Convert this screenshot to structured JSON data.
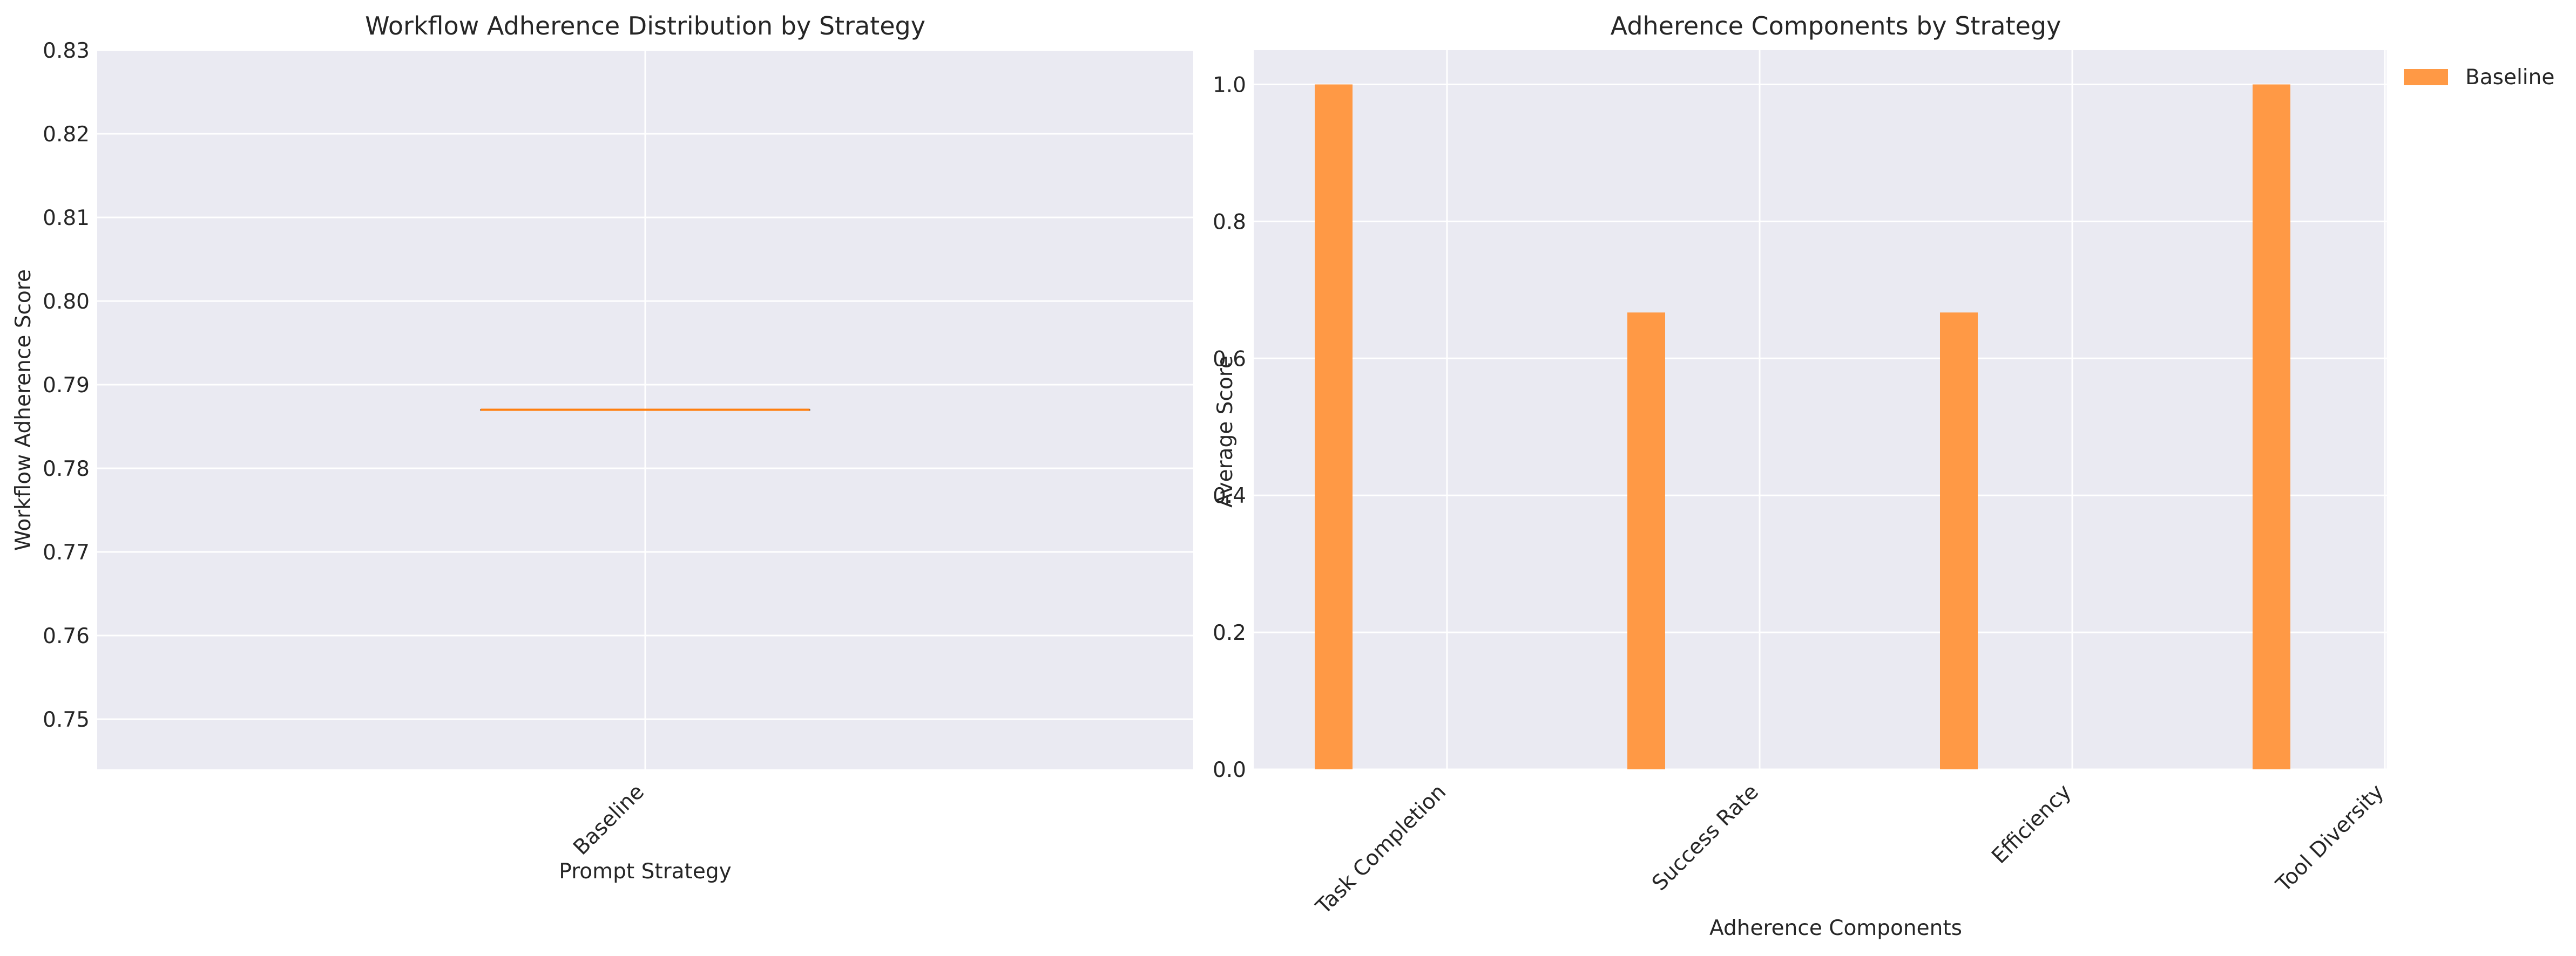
{
  "chart_data": [
    {
      "type": "box",
      "title": "Workflow Adherence Distribution by Strategy",
      "xlabel": "Prompt Strategy",
      "ylabel": "Workflow Adherence Score",
      "categories": [
        "Baseline"
      ],
      "series": [
        {
          "name": "Baseline",
          "median": 0.787,
          "q1": 0.787,
          "q3": 0.787,
          "min": 0.787,
          "max": 0.787,
          "color": "#ff7f0e"
        }
      ],
      "ylim": [
        0.744,
        0.83
      ],
      "yticks": [
        "0.75",
        "0.76",
        "0.77",
        "0.78",
        "0.79",
        "0.80",
        "0.81",
        "0.82",
        "0.83"
      ],
      "grid": true
    },
    {
      "type": "bar",
      "title": "Adherence Components by Strategy",
      "xlabel": "Adherence Components",
      "ylabel": "Average Score",
      "categories": [
        "Task Completion",
        "Success Rate",
        "Efficiency",
        "Tool Diversity"
      ],
      "series": [
        {
          "name": "Baseline",
          "values": [
            1.0,
            0.667,
            0.667,
            1.0
          ],
          "color": "#ff9945"
        }
      ],
      "ylim": [
        0,
        1.05
      ],
      "yticks": [
        "0.0",
        "0.2",
        "0.4",
        "0.6",
        "0.8",
        "1.0"
      ],
      "legend": {
        "placement": "outside-top-right"
      },
      "grid": true
    }
  ]
}
